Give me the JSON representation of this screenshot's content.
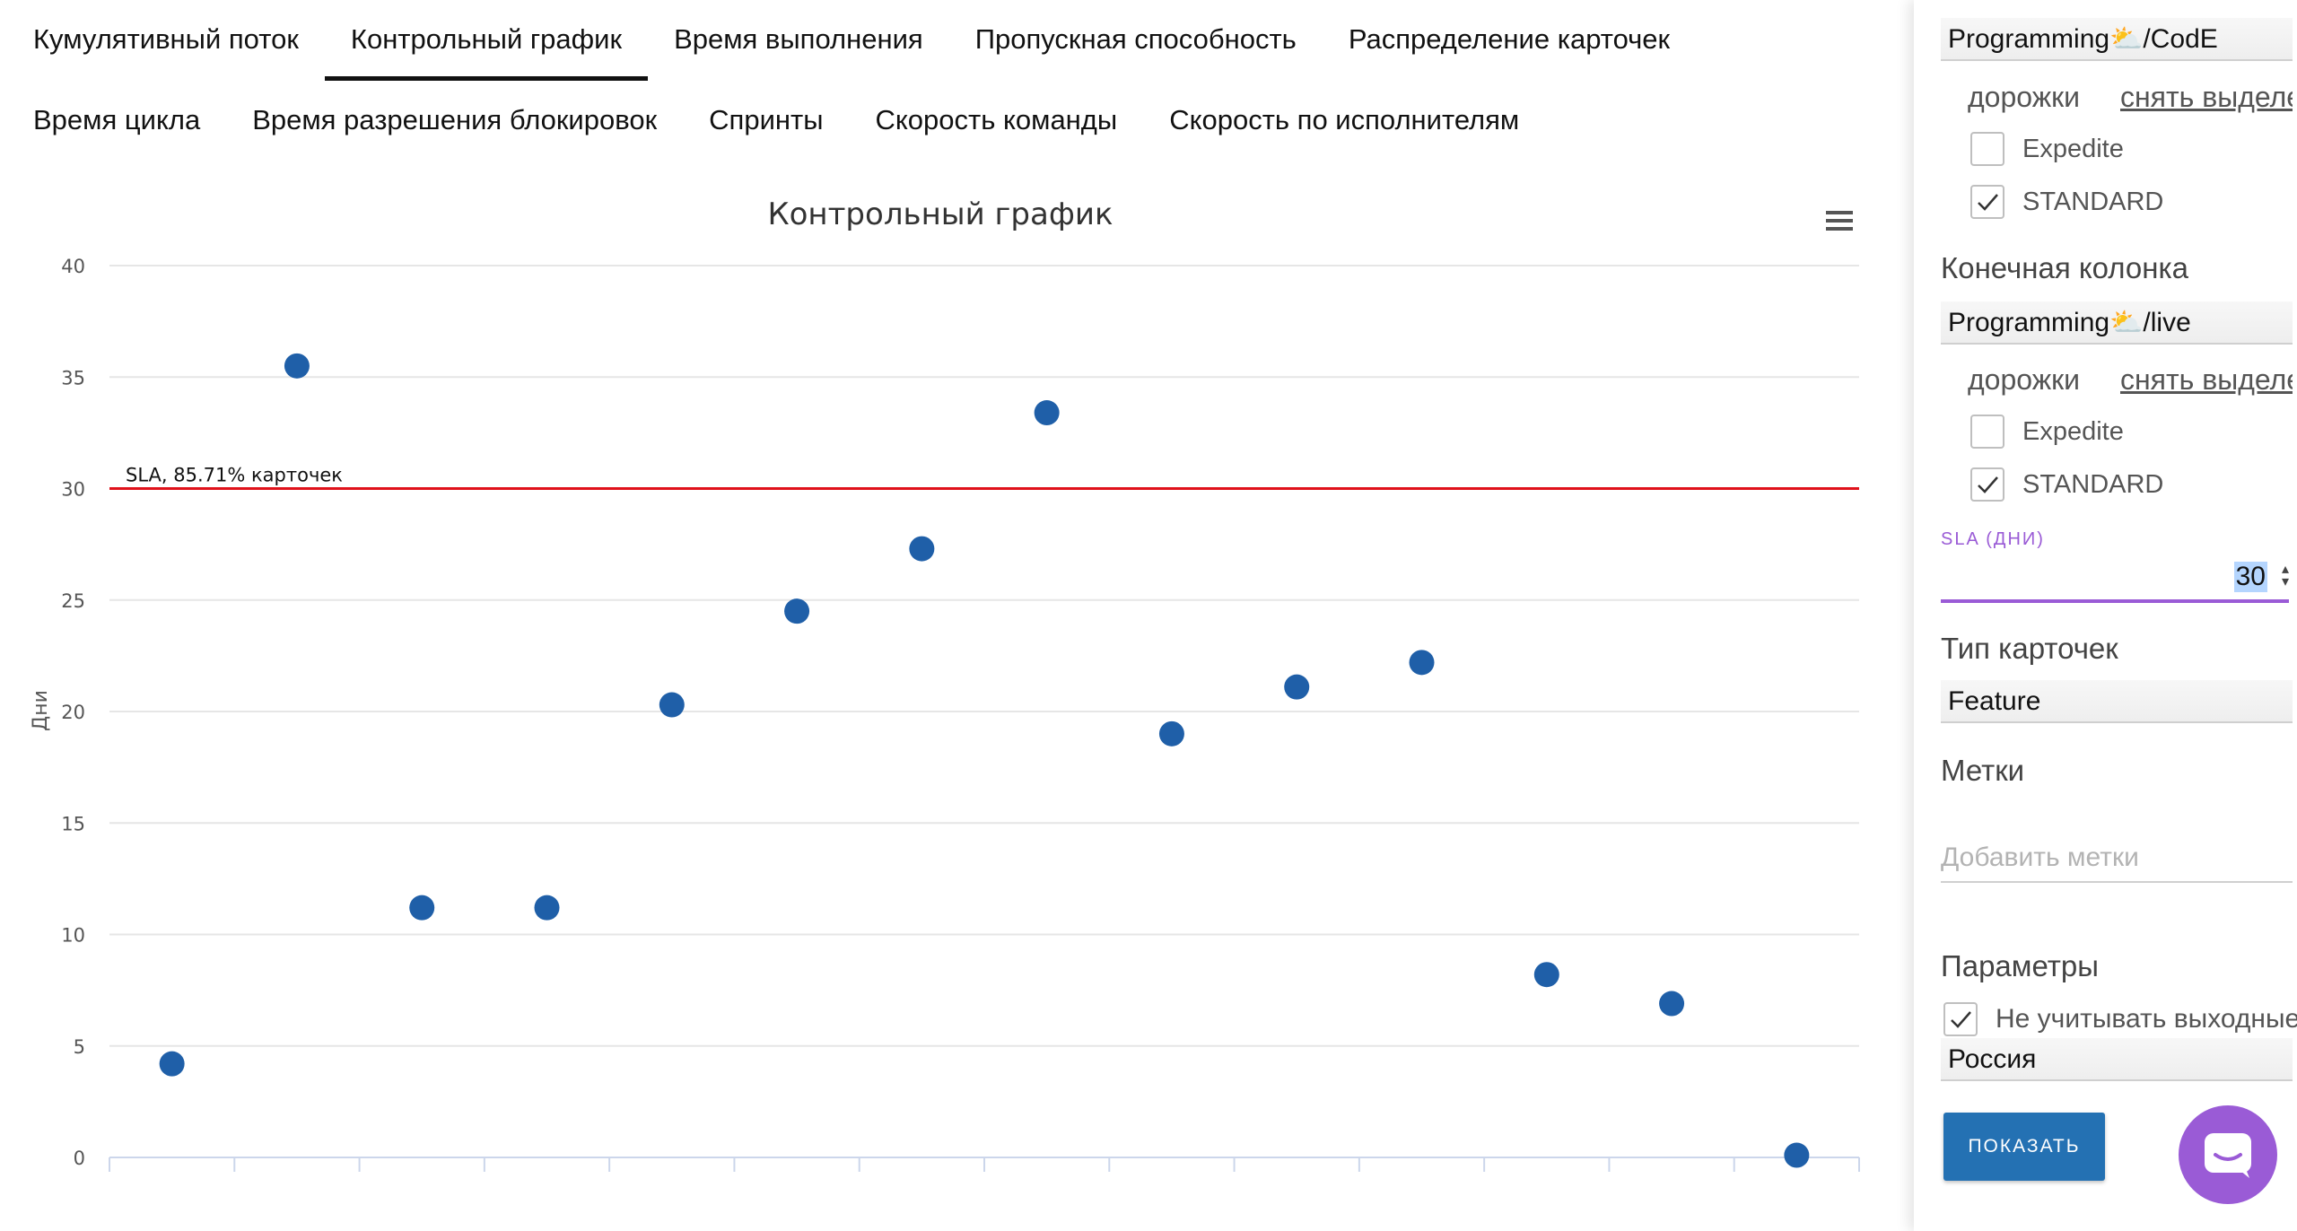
{
  "tabs": {
    "row1": [
      "Кумулятивный поток",
      "Контрольный график",
      "Время выполнения",
      "Пропускная способность",
      "Распределение карточек"
    ],
    "row2": [
      "Время цикла",
      "Время разрешения блокировок",
      "Спринты",
      "Скорость команды",
      "Скорость по исполнителям"
    ],
    "active": "Контрольный график"
  },
  "chart_data": {
    "type": "scatter",
    "title": "Контрольный график",
    "ylabel": "Дни",
    "xlabel": "",
    "ylim": [
      0,
      40
    ],
    "yticks": [
      0,
      5,
      10,
      15,
      20,
      25,
      30,
      35,
      40
    ],
    "x_category_count": 14,
    "points": [
      {
        "x": 1,
        "y": 4.2
      },
      {
        "x": 2,
        "y": 35.5
      },
      {
        "x": 3,
        "y": 11.2
      },
      {
        "x": 4,
        "y": 11.2
      },
      {
        "x": 5,
        "y": 20.3
      },
      {
        "x": 6,
        "y": 24.5
      },
      {
        "x": 7,
        "y": 27.3
      },
      {
        "x": 8,
        "y": 33.4
      },
      {
        "x": 9,
        "y": 19.0
      },
      {
        "x": 10,
        "y": 21.1
      },
      {
        "x": 11,
        "y": 22.2
      },
      {
        "x": 12,
        "y": 8.2
      },
      {
        "x": 13,
        "y": 6.9
      },
      {
        "x": 14,
        "y": 0.1
      }
    ],
    "sla_line": {
      "y": 30,
      "label": "SLA, 85.71% карточек",
      "color": "#e0121b"
    },
    "point_color": "#1f5fa8",
    "grid": true,
    "legend": "none"
  },
  "sidebar": {
    "start_column": {
      "value": "Programming⛅/CodE",
      "lanes_label": "дорожки",
      "unselect_label": "снять выделение",
      "lanes": [
        {
          "label": "Expedite",
          "checked": false
        },
        {
          "label": "STANDARD",
          "checked": true
        }
      ]
    },
    "end_column": {
      "label": "Конечная колонка",
      "value": "Programming⛅/live",
      "lanes_label": "дорожки",
      "unselect_label": "снять выделение",
      "lanes": [
        {
          "label": "Expedite",
          "checked": false
        },
        {
          "label": "STANDARD",
          "checked": true
        }
      ]
    },
    "sla": {
      "label": "SLA (ДНИ)",
      "value": "30"
    },
    "card_type": {
      "label": "Тип карточек",
      "value": "Feature"
    },
    "tags": {
      "label": "Метки",
      "placeholder": "Добавить метки"
    },
    "params": {
      "label": "Параметры",
      "exclude_weekends": {
        "label": "Не учитывать выходные",
        "checked": true
      },
      "country": "Россия"
    },
    "show_button": "ПОКАЗАТЬ"
  },
  "colors": {
    "accent": "#9a5bd6",
    "button": "#2471b3",
    "sla": "#e0121b",
    "point": "#1f5fa8"
  }
}
